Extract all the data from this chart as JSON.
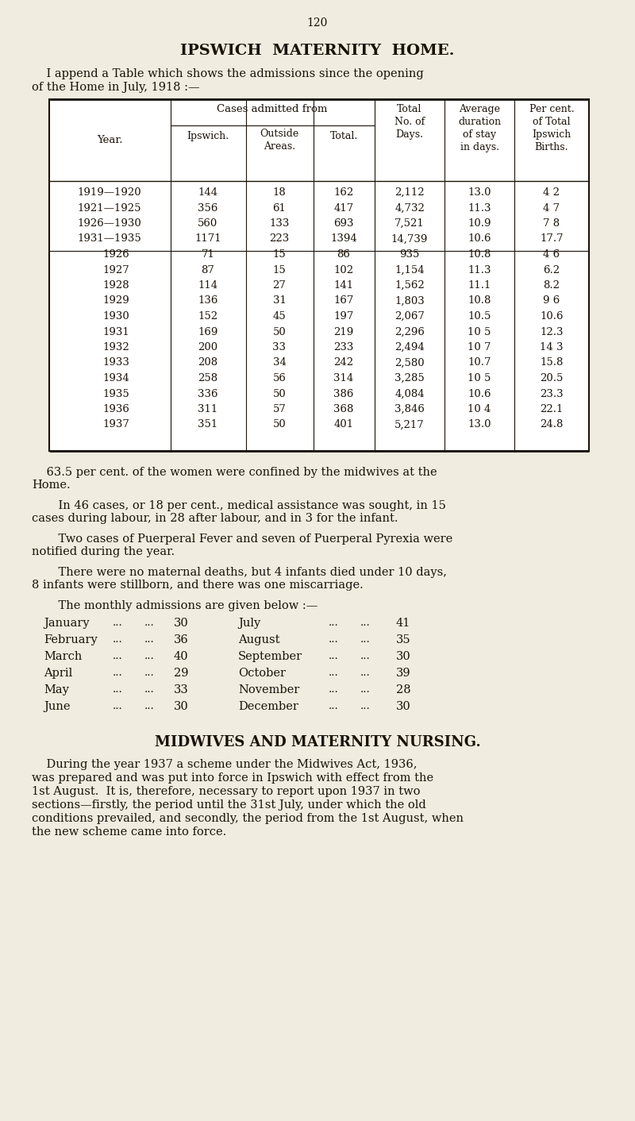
{
  "bg_color": "#f0ede0",
  "page_number": "120",
  "main_title": "IPSWICH  MATERNITY  HOME.",
  "intro_line1": "    I append a Table which shows the admissions since the opening",
  "intro_line2": "of the Home in July, 1918 :—",
  "table_rows": [
    [
      "1919—1920",
      "144",
      "18",
      "162",
      "2,112",
      "13.0",
      "4 2"
    ],
    [
      "1921—1925",
      "356",
      "61",
      "417",
      "4,732",
      "11.3",
      "4 7"
    ],
    [
      "1926—1930",
      "560",
      "133",
      "693",
      "7,521",
      "10.9",
      "7 8"
    ],
    [
      "1931—1935",
      "1171",
      "223",
      "1394",
      "14,739",
      "10.6",
      "17.7"
    ],
    [
      "1926",
      "71",
      "15",
      "86",
      "935",
      "10.8",
      "4 6"
    ],
    [
      "1927",
      "87",
      "15",
      "102",
      "1,154",
      "11.3",
      "6.2"
    ],
    [
      "1928",
      "114",
      "27",
      "141",
      "1,562",
      "11.1",
      "8.2"
    ],
    [
      "1929",
      "136",
      "31",
      "167",
      "1,803",
      "10.8",
      "9 6"
    ],
    [
      "1930",
      "152",
      "45",
      "197",
      "2,067",
      "10.5",
      "10.6"
    ],
    [
      "1931",
      "169",
      "50",
      "219",
      "2,296",
      "10 5",
      "12.3"
    ],
    [
      "1932",
      "200",
      "33",
      "233",
      "2,494",
      "10 7",
      "14 3"
    ],
    [
      "1933",
      "208",
      "34",
      "242",
      "2,580",
      "10.7",
      "15.8"
    ],
    [
      "1934",
      "258",
      "56",
      "314",
      "3,285",
      "10 5",
      "20.5"
    ],
    [
      "1935",
      "336",
      "50",
      "386",
      "4,084",
      "10.6",
      "23.3"
    ],
    [
      "1936",
      "311",
      "57",
      "368",
      "3,846",
      "10 4",
      "22.1"
    ],
    [
      "1937",
      "351",
      "50",
      "401",
      "5,217",
      "13.0",
      "24.8"
    ]
  ],
  "para1_indent": "    63.5 per cent. of the women were confined by the midwives at the",
  "para1_cont": "Home.",
  "para2_indent": "    In 46 cases, or 18 per cent., medical assistance was sought, in 15",
  "para2_cont": "cases during labour, in 28 after labour, and in 3 for the infant.",
  "para3_indent": "    Two cases of Puerperal Fever and seven of Puerperal Pyrexia were",
  "para3_cont": "notified during the year.",
  "para4_indent": "    There were no maternal deaths, but 4 infants died under 10 days,",
  "para4_cont": "8 infants were stillborn, and there was one miscarriage.",
  "monthly_intro": "    The monthly admissions are given below :—",
  "monthly_left": [
    [
      "January",
      "30"
    ],
    [
      "February",
      "36"
    ],
    [
      "March",
      "40"
    ],
    [
      "April",
      "29"
    ],
    [
      "May",
      "33"
    ],
    [
      "June",
      "30"
    ]
  ],
  "monthly_right": [
    [
      "July",
      "41"
    ],
    [
      "August",
      "35"
    ],
    [
      "September",
      "30"
    ],
    [
      "October",
      "39"
    ],
    [
      "November",
      "28"
    ],
    [
      "December",
      "30"
    ]
  ],
  "section2_title": "MIDWIVES AND MATERNITY NURSING.",
  "section2_lines": [
    "    During the year 1937 a scheme under the Midwives Act, 1936,",
    "was prepared and was put into force in Ipswich with effect from the",
    "1st August.  It is, therefore, necessary to report upon 1937 in two",
    "sections—firstly, the period until the 31st July, under which the old",
    "conditions prevailed, and secondly, the period from the 1st August, when",
    "the new scheme came into force."
  ]
}
